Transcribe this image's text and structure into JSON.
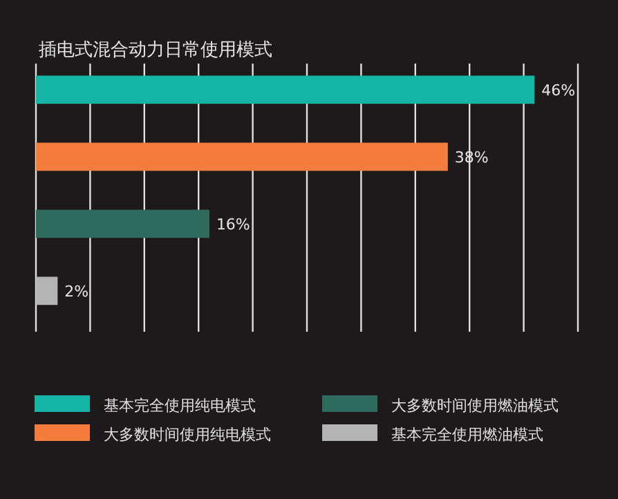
{
  "chart_data": {
    "type": "bar",
    "orientation": "horizontal",
    "stacked": true,
    "title": "插电式混合动力日常使用模式",
    "categories": [
      null,
      null,
      null,
      null
    ],
    "series": [
      {
        "name": "基本完全使用纯电模式",
        "color": "#14b5a5",
        "values": [
          46,
          null,
          null,
          null
        ],
        "value_labels": [
          "46%",
          null,
          null,
          null
        ]
      },
      {
        "name": "大多数时间使用纯电模式",
        "color": "#f47c3c",
        "values": [
          null,
          38,
          null,
          null
        ],
        "value_labels": [
          null,
          "38%",
          null,
          null
        ]
      },
      {
        "name": "大多数时间使用燃油模式",
        "color": "#2e6b5c",
        "values": [
          null,
          null,
          16,
          null
        ],
        "value_labels": [
          null,
          null,
          "16%",
          null
        ]
      },
      {
        "name": "基本完全使用燃油模式",
        "color": "#b4b4b4",
        "values": [
          null,
          null,
          null,
          2
        ],
        "value_labels": [
          null,
          null,
          null,
          "2%"
        ]
      }
    ],
    "xlim": [
      0,
      50
    ],
    "xticks": [
      {
        "value": 0,
        "label": null
      },
      {
        "value": 5,
        "label": null
      },
      {
        "value": 10,
        "label": null
      },
      {
        "value": 15,
        "label": null
      },
      {
        "value": 20,
        "label": null
      },
      {
        "value": 25,
        "label": null
      },
      {
        "value": 30,
        "label": null
      },
      {
        "value": 35,
        "label": null
      },
      {
        "value": 40,
        "label": null
      },
      {
        "value": 45,
        "label": null
      },
      {
        "value": 50,
        "label": null
      }
    ],
    "grid": "x",
    "legend": "bottom"
  }
}
